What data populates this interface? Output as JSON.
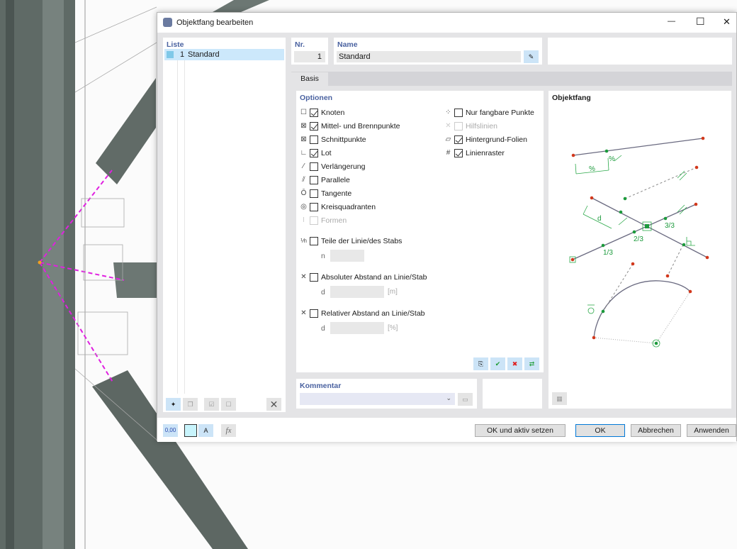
{
  "dialog": {
    "title": "Objektfang bearbeiten",
    "minimize": "—",
    "maximize": "☐",
    "close": "✕"
  },
  "list": {
    "header": "Liste",
    "items": [
      {
        "num": "1",
        "name": "Standard",
        "color": "#7fc8e8"
      }
    ]
  },
  "nr": {
    "label": "Nr.",
    "value": "1"
  },
  "name": {
    "label": "Name",
    "value": "Standard"
  },
  "tabs": [
    {
      "label": "Basis",
      "active": true
    }
  ],
  "options": {
    "header": "Optionen",
    "left": [
      {
        "label": "Knoten",
        "checked": true,
        "enabled": true,
        "icon": "node-snap-icon"
      },
      {
        "label": "Mittel- und Brennpunkte",
        "checked": true,
        "enabled": true,
        "icon": "midpoint-snap-icon"
      },
      {
        "label": "Schnittpunkte",
        "checked": false,
        "enabled": true,
        "icon": "intersection-snap-icon"
      },
      {
        "label": "Lot",
        "checked": true,
        "enabled": true,
        "icon": "perpendicular-snap-icon"
      },
      {
        "label": "Verlängerung",
        "checked": false,
        "enabled": true,
        "icon": "extension-snap-icon"
      },
      {
        "label": "Parallele",
        "checked": false,
        "enabled": true,
        "icon": "parallel-snap-icon"
      },
      {
        "label": "Tangente",
        "checked": false,
        "enabled": true,
        "icon": "tangent-snap-icon"
      },
      {
        "label": "Kreisquadranten",
        "checked": false,
        "enabled": true,
        "icon": "quadrant-snap-icon"
      },
      {
        "label": "Formen",
        "checked": false,
        "enabled": false,
        "icon": "shape-snap-icon"
      }
    ],
    "right": [
      {
        "label": "Nur fangbare Punkte",
        "checked": false,
        "enabled": true,
        "icon": "snappable-points-icon"
      },
      {
        "label": "Hilfslinien",
        "checked": false,
        "enabled": false,
        "icon": "guideline-icon"
      },
      {
        "label": "Hintergrund-Folien",
        "checked": true,
        "enabled": true,
        "icon": "background-layer-icon"
      },
      {
        "label": "Linienraster",
        "checked": true,
        "enabled": true,
        "icon": "line-grid-icon"
      }
    ],
    "divisions": {
      "label": "Teile der Linie/des Stabs",
      "checked": false,
      "field_label": "n",
      "value": ""
    },
    "absolute": {
      "label": "Absoluter Abstand an Linie/Stab",
      "checked": false,
      "field_label": "d",
      "value": "",
      "unit": "[m]"
    },
    "relative": {
      "label": "Relativer Abstand an Linie/Stab",
      "checked": false,
      "field_label": "d",
      "value": "",
      "unit": "[%]"
    }
  },
  "preview": {
    "header": "Objektfang",
    "labels": {
      "pct": "%",
      "pct2": "%",
      "d": "d",
      "third1": "1/3",
      "third2": "2/3",
      "third3": "3/3"
    }
  },
  "comment": {
    "header": "Kommentar",
    "value": ""
  },
  "buttons": {
    "ok_active": "OK und aktiv setzen",
    "ok": "OK",
    "cancel": "Abbrechen",
    "apply": "Anwenden"
  },
  "footer_icons": {
    "units": "0,00",
    "fx": "fx"
  }
}
